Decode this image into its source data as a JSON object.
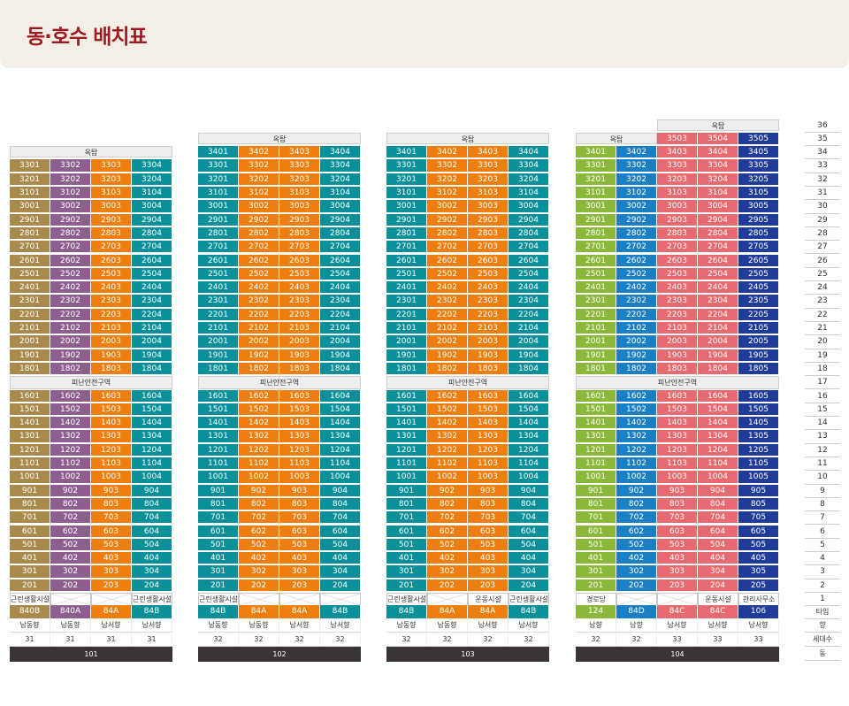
{
  "page": {
    "title": "동·호수 배치표"
  },
  "labels": {
    "roof": "옥탑",
    "refuge": "피난안전구역"
  },
  "colors": {
    "gold": "#a98a4c",
    "purple": "#8d5f8e",
    "orange": "#ee7f0e",
    "teal": "#0b8f98",
    "green": "#8cb83a",
    "blue": "#1a7fc3",
    "pink": "#e66a6f",
    "navy": "#1f3c9b"
  },
  "buildings": [
    {
      "name": "101",
      "top_floor": 33,
      "roof_cols": [
        0,
        4
      ],
      "roof_floor": 34,
      "colors": [
        "gold",
        "purple",
        "orange",
        "teal"
      ],
      "facilities": [
        {
          "text": "근린생활시설"
        },
        {
          "text": "",
          "x": true
        },
        {
          "text": "",
          "x": true
        },
        {
          "text": "근린생활시설"
        }
      ],
      "types": [
        "840B",
        "840A",
        "84A",
        "84B"
      ],
      "directions": [
        "남동향",
        "남동향",
        "남서향",
        "남서향"
      ],
      "counts": [
        "31",
        "31",
        "31",
        "31"
      ]
    },
    {
      "name": "102",
      "top_floor": 34,
      "roof_cols": [
        0,
        4
      ],
      "roof_floor": 35,
      "colors": [
        "teal",
        "orange",
        "orange",
        "teal"
      ],
      "facilities": [
        {
          "text": "근린생활시설"
        },
        {
          "text": "",
          "x": true
        },
        {
          "text": "",
          "x": true
        },
        {
          "text": "",
          "x": true
        }
      ],
      "types": [
        "84B",
        "84A",
        "84A",
        "84B"
      ],
      "directions": [
        "남동향",
        "남동향",
        "남서향",
        "남서향"
      ],
      "counts": [
        "32",
        "32",
        "32",
        "32"
      ]
    },
    {
      "name": "103",
      "top_floor": 34,
      "roof_cols": [
        0,
        4
      ],
      "roof_floor": 35,
      "colors": [
        "teal",
        "orange",
        "orange",
        "teal"
      ],
      "facilities": [
        {
          "text": "근린생활시설"
        },
        {
          "text": "",
          "x": true
        },
        {
          "text": "운동시설"
        },
        {
          "text": "근린생활시설"
        }
      ],
      "types": [
        "84B",
        "84A",
        "84A",
        "84B"
      ],
      "directions": [
        "남동향",
        "남동향",
        "남서향",
        "남서향"
      ],
      "counts": [
        "32",
        "32",
        "32",
        "32"
      ]
    },
    {
      "name": "104",
      "top_floor": 34,
      "roof_cols": [
        0,
        2
      ],
      "roof_floor": 35,
      "extra_top": {
        "floor": 35,
        "cols": [
          2,
          5
        ],
        "units": [
          "3503",
          "3504",
          "3505"
        ],
        "roof_floor": 36
      },
      "colors": [
        "green",
        "blue",
        "pink",
        "pink",
        "navy"
      ],
      "facilities": [
        {
          "text": "경로당"
        },
        {
          "text": "",
          "x": true
        },
        {
          "text": "",
          "x": true
        },
        {
          "text": "운동시설"
        },
        {
          "text": "관리사무소"
        }
      ],
      "types": [
        "124",
        "84D",
        "84C",
        "84C",
        "106"
      ],
      "directions": [
        "남향",
        "남향",
        "남서향",
        "남서향",
        "남서향"
      ],
      "counts": [
        "32",
        "32",
        "33",
        "33",
        "33"
      ]
    }
  ],
  "axis": {
    "floors_from": 36,
    "floors_to": 1,
    "type": "타입",
    "direction": "향",
    "households": "세대수",
    "building": "동"
  }
}
